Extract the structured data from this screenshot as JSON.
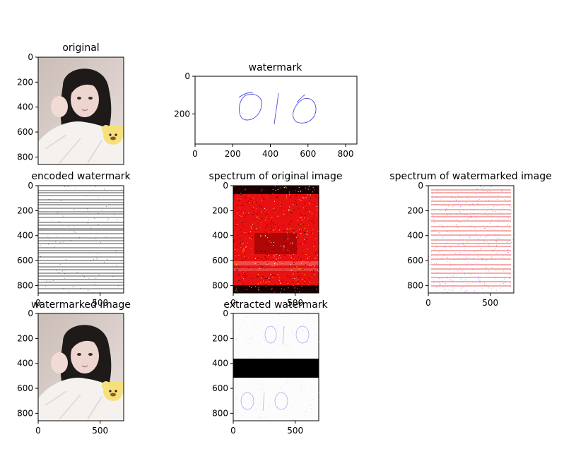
{
  "figure": {
    "background": "#ffffff"
  },
  "chart_data": [
    {
      "type": "image",
      "title": "original",
      "depicts": "portrait-photo",
      "xlim": [
        0,
        690
      ],
      "ylim": [
        860,
        0
      ],
      "xticks": [],
      "yticks": [
        0,
        200,
        400,
        600,
        800
      ]
    },
    {
      "type": "image",
      "title": "watermark",
      "depicts": "handwritten-010-blue",
      "watermark_text": "010",
      "watermark_color": "#3a3adf",
      "xlim": [
        0,
        860
      ],
      "ylim": [
        360,
        0
      ],
      "xticks": [
        0,
        200,
        400,
        600,
        800
      ],
      "yticks": [
        0,
        200
      ]
    },
    {
      "type": "image",
      "title": "encoded watermark",
      "depicts": "horizontal-black-lines-on-white",
      "xlim": [
        0,
        690
      ],
      "ylim": [
        860,
        0
      ],
      "xticks": [
        0,
        500
      ],
      "yticks": [
        0,
        200,
        400,
        600,
        800
      ]
    },
    {
      "type": "image",
      "title": "spectrum of original image",
      "depicts": "red-black-noise-spectrum",
      "xlim": [
        0,
        690
      ],
      "ylim": [
        860,
        0
      ],
      "xticks": [
        0,
        500
      ],
      "yticks": [
        0,
        200,
        400,
        600,
        800
      ]
    },
    {
      "type": "image",
      "title": "spectrum of watermarked image",
      "depicts": "mostly-white-spectrum-with-red-lines",
      "xlim": [
        0,
        690
      ],
      "ylim": [
        860,
        0
      ],
      "xticks": [
        0,
        500
      ],
      "yticks": [
        0,
        200,
        400,
        600,
        800
      ]
    },
    {
      "type": "image",
      "title": "watermarked image",
      "depicts": "portrait-photo",
      "xlim": [
        0,
        690
      ],
      "ylim": [
        860,
        0
      ],
      "xticks": [
        0,
        500
      ],
      "yticks": [
        0,
        200,
        400,
        600,
        800
      ]
    },
    {
      "type": "image",
      "title": "extracted watermark",
      "depicts": "faint-010-top-and-bottom-with-black-band",
      "watermark_text": "010",
      "xlim": [
        0,
        690
      ],
      "ylim": [
        860,
        0
      ],
      "xticks": [
        0,
        500
      ],
      "yticks": [
        0,
        200,
        400,
        600,
        800
      ]
    }
  ]
}
